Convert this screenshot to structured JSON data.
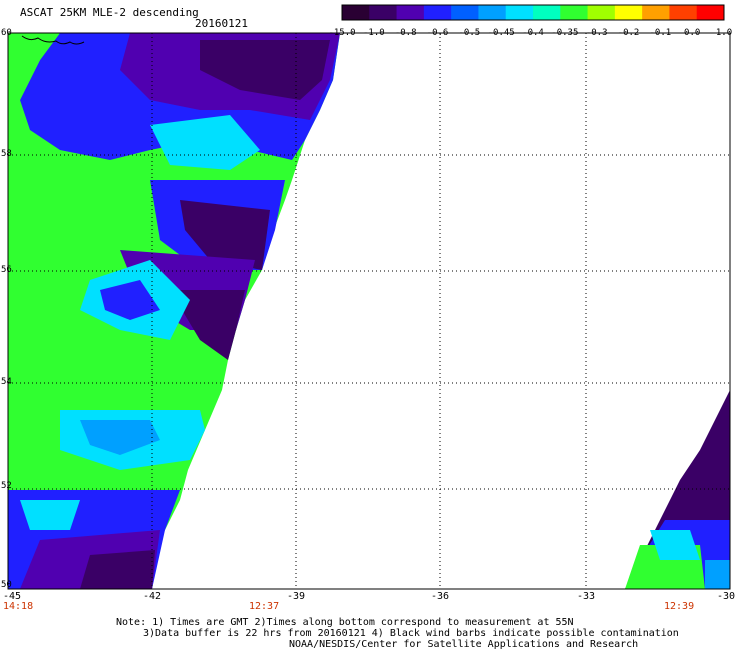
{
  "title": "ASCAT 25KM MLE-2 descending",
  "date": "20160121",
  "colorbar": {
    "labels": [
      "-15.0",
      "-1.0",
      "-0.8",
      "-0.6",
      "-0.5",
      "-0.45",
      "-0.4",
      "-0.35",
      "-0.3",
      "-0.2",
      "-0.1",
      "0.0",
      "1.0"
    ],
    "colors": [
      "#2a0033",
      "#3a0066",
      "#5000b0",
      "#2020ff",
      "#0060ff",
      "#00a0ff",
      "#00e0ff",
      "#00ffc0",
      "#30ff30",
      "#a0ff00",
      "#ffff00",
      "#ffa000",
      "#ff4000",
      "#ff0000"
    ]
  },
  "map": {
    "lat_labels": [
      "60",
      "58",
      "56",
      "54",
      "52",
      "50"
    ],
    "lon_labels": [
      "-45",
      "-42",
      "-39",
      "-36",
      "-33",
      "-30"
    ],
    "times": [
      "14:18",
      "12:37",
      "12:39"
    ],
    "colors": {
      "time": "#cc3300",
      "grid": "#000000"
    }
  },
  "notes": {
    "line1": "Note: 1) Times are GMT 2)Times along bottom correspond to measurement at 55N",
    "line2": "3)Data buffer is 22 hrs from 20160121 4) Black wind barbs indicate possible contamination",
    "line3": "NOAA/NESDIS/Center for Satellite Applications and Research"
  }
}
